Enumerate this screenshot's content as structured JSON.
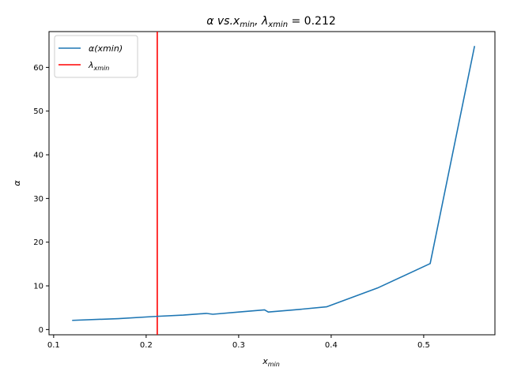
{
  "chart_data": {
    "type": "line",
    "title": {
      "pre": "α vs.x",
      "sub1": "min",
      "mid": ", λ",
      "sub2": "xmin",
      "post": " = 0.212"
    },
    "xlabel": {
      "base": "x",
      "sub": "min"
    },
    "ylabel": "α",
    "xlim": [
      0.095,
      0.577
    ],
    "ylim": [
      -1.2,
      68.2
    ],
    "xticks": [
      0.1,
      0.2,
      0.3,
      0.4,
      0.5
    ],
    "xtick_labels": [
      "0.1",
      "0.2",
      "0.3",
      "0.4",
      "0.5"
    ],
    "yticks": [
      0,
      10,
      20,
      30,
      40,
      50,
      60
    ],
    "ytick_labels": [
      "0",
      "10",
      "20",
      "30",
      "40",
      "50",
      "60"
    ],
    "grid": false,
    "legend_position": "top-left",
    "series": [
      {
        "name": "α(xmin)",
        "color": "#1f77b4",
        "x": [
          0.12,
          0.17,
          0.21,
          0.24,
          0.265,
          0.272,
          0.3,
          0.328,
          0.332,
          0.36,
          0.395,
          0.45,
          0.507,
          0.555
        ],
        "y": [
          2.1,
          2.5,
          3.0,
          3.3,
          3.7,
          3.5,
          4.0,
          4.5,
          4.0,
          4.5,
          5.2,
          9.5,
          15.1,
          64.9
        ]
      }
    ],
    "vlines": [
      {
        "name": "λxmin",
        "x": 0.212,
        "color": "#ff0000"
      }
    ],
    "legend": [
      {
        "label_base": "α(",
        "label_italic": "xmin",
        "label_end": ")",
        "color": "#1f77b4"
      },
      {
        "label_base": "λ",
        "label_sub": "xmin",
        "color": "#ff0000"
      }
    ]
  }
}
